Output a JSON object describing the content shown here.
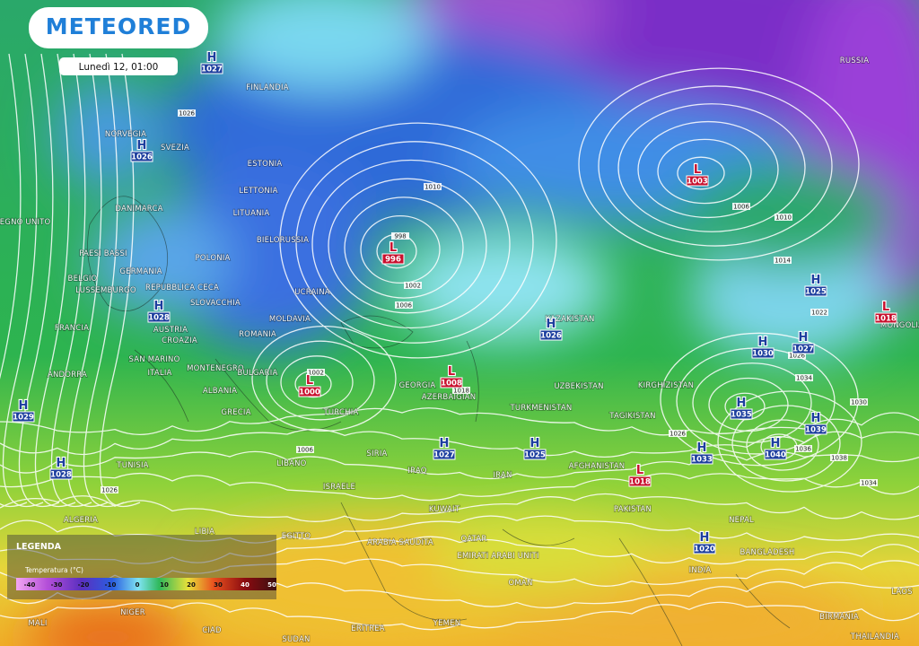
{
  "header": {
    "logo": "METEORED",
    "date": "Lunedì 12, 01:00"
  },
  "pressure_centers": [
    {
      "type": "H",
      "value": 1027
    },
    {
      "type": "H",
      "value": 1026
    },
    {
      "type": "H",
      "value": 1028
    },
    {
      "type": "L",
      "value": 996
    },
    {
      "type": "L",
      "value": 1003
    },
    {
      "type": "L",
      "value": 1000
    },
    {
      "type": "L",
      "value": 1008
    },
    {
      "type": "H",
      "value": 1026
    },
    {
      "type": "H",
      "value": 1025
    },
    {
      "type": "L",
      "value": 1018
    },
    {
      "type": "H",
      "value": 1030
    },
    {
      "type": "H",
      "value": 1027
    },
    {
      "type": "H",
      "value": 1035
    },
    {
      "type": "H",
      "value": 1039
    },
    {
      "type": "H",
      "value": 1029
    },
    {
      "type": "H",
      "value": 1028
    },
    {
      "type": "H",
      "value": 1027
    },
    {
      "type": "H",
      "value": 1025
    },
    {
      "type": "H",
      "value": 1033
    },
    {
      "type": "H",
      "value": 1040
    },
    {
      "type": "L",
      "value": 1018
    },
    {
      "type": "H",
      "value": 1020
    }
  ],
  "countries": [
    "FINLANDIA",
    "RUSSIA",
    "NORVEGIA",
    "SVEZIA",
    "ESTONIA",
    "LETTONIA",
    "DANIMARCA",
    "LITUANIA",
    "REGNO UNITO",
    "BIELORUSSIA",
    "PAESI BASSI",
    "POLONIA",
    "GERMANIA",
    "BELGIO",
    "LUSSEMBURGO",
    "REPUBBLICA CECA",
    "SLOVACCHIA",
    "UCRAINA",
    "MOLDAVIA",
    "FRANCIA",
    "AUSTRIA",
    "CROAZIA",
    "ROMANIA",
    "SAN MARINO",
    "MONTENEGRO",
    "BULGARIA",
    "ANDORRA",
    "ITALIA",
    "ALBANIA",
    "GRECIA",
    "TURCHIA",
    "GEORGIA",
    "AZERBAIGIAN",
    "KAZAKISTAN",
    "UZBEKISTAN",
    "KIRGHIZISTAN",
    "TURKMENISTAN",
    "TAGIKISTAN",
    "MONGOLIA",
    "TUNISIA",
    "SIRIA",
    "IRAQ",
    "LIBANO",
    "ISRAELE",
    "IRAN",
    "AFGHANISTAN",
    "PAKISTAN",
    "KUWAIT",
    "ALGERIA",
    "LIBIA",
    "EGITTO",
    "ARABIA SAUDITA",
    "QATAR",
    "EMIRATI ARABI UNITI",
    "NEPAL",
    "BANGLADESH",
    "INDIA",
    "OMAN",
    "MALI",
    "NIGER",
    "CIAD",
    "ERITREA",
    "YEMEN",
    "SUDAN",
    "BIRMANIA",
    "THAILANDIA",
    "LAOS"
  ],
  "isobar_labels": [
    1026,
    1010,
    1006,
    1010,
    1014,
    998,
    1002,
    1006,
    1002,
    1022,
    1026,
    1034,
    1030,
    1026,
    1018,
    1036,
    1038,
    1034,
    1006,
    1026
  ],
  "legend": {
    "title": "LEGENDA",
    "subtitle": "Temperatura (°C)",
    "ticks": [
      -40,
      -30,
      -20,
      -10,
      0,
      10,
      20,
      30,
      40,
      50
    ]
  }
}
